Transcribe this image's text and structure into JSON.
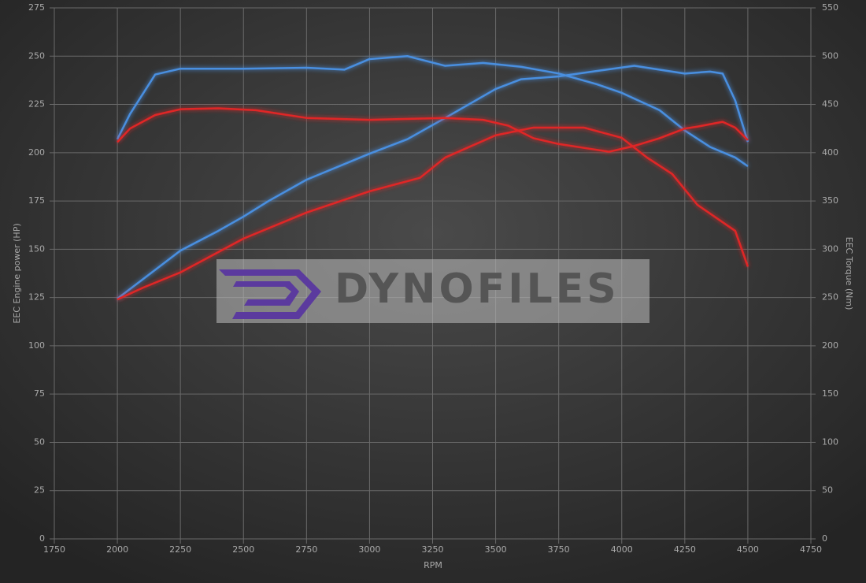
{
  "chart_data": {
    "type": "line",
    "x_label": "RPM",
    "y_label": "EEC Engine power (HP)",
    "y2_label": "EEC Torque (Nm)",
    "watermark": "DYNOFILES",
    "xlim": [
      1750,
      4750
    ],
    "xticks": [
      1750,
      2000,
      2250,
      2500,
      2750,
      3000,
      3250,
      3500,
      3750,
      4000,
      4250,
      4500,
      4750
    ],
    "ylim": [
      0,
      275
    ],
    "yticks": [
      0,
      25,
      50,
      75,
      100,
      125,
      150,
      175,
      200,
      225,
      250,
      275
    ],
    "y2lim": [
      0,
      550
    ],
    "y2ticks": [
      0,
      50,
      100,
      150,
      200,
      250,
      300,
      350,
      400,
      450,
      500,
      550
    ],
    "grid": true,
    "series": [
      {
        "color": "#4a8fe0",
        "axis": "y",
        "x": [
          2000,
          2250,
          2400,
          2500,
          2600,
          2750,
          3000,
          3150,
          3300,
          3500,
          3600,
          3750,
          3900,
          4050,
          4250,
          4350,
          4400,
          4450,
          4500
        ],
        "values": [
          124.4,
          149.3,
          159.5,
          166.9,
          175,
          186,
          199.5,
          207,
          218,
          233,
          238,
          239.5,
          242.3,
          245,
          241,
          242,
          241,
          227,
          205.6
        ]
      },
      {
        "color": "#4a8fe0",
        "axis": "y2",
        "x": [
          2000,
          2050,
          2150,
          2250,
          2500,
          2750,
          2900,
          3000,
          3150,
          3300,
          3450,
          3600,
          3750,
          3900,
          4000,
          4150,
          4250,
          4350,
          4450,
          4500
        ],
        "values": [
          414,
          440,
          481,
          487,
          487,
          488,
          486,
          497,
          500,
          490,
          493,
          489,
          482,
          471,
          462,
          444,
          423,
          406,
          395,
          386
        ]
      },
      {
        "color": "#e02828",
        "axis": "y",
        "x": [
          2000,
          2100,
          2250,
          2500,
          2750,
          3000,
          3200,
          3300,
          3500,
          3650,
          3850,
          4000,
          4100,
          4200,
          4300,
          4450,
          4500
        ],
        "values": [
          124,
          130,
          138,
          155.5,
          169,
          180,
          187,
          197.5,
          209,
          213,
          213,
          207.7,
          197.5,
          189,
          173,
          159.5,
          141
        ]
      },
      {
        "color": "#e02828",
        "axis": "y2",
        "x": [
          2000,
          2050,
          2150,
          2250,
          2400,
          2550,
          2750,
          3000,
          3300,
          3450,
          3550,
          3650,
          3750,
          3850,
          3950,
          4050,
          4150,
          4250,
          4300,
          4400,
          4450,
          4500
        ],
        "values": [
          411,
          425,
          439,
          445,
          446,
          444,
          436,
          434,
          436,
          434,
          428,
          415,
          409,
          405,
          401,
          407,
          415,
          425,
          427,
          432,
          426,
          413
        ]
      }
    ]
  }
}
